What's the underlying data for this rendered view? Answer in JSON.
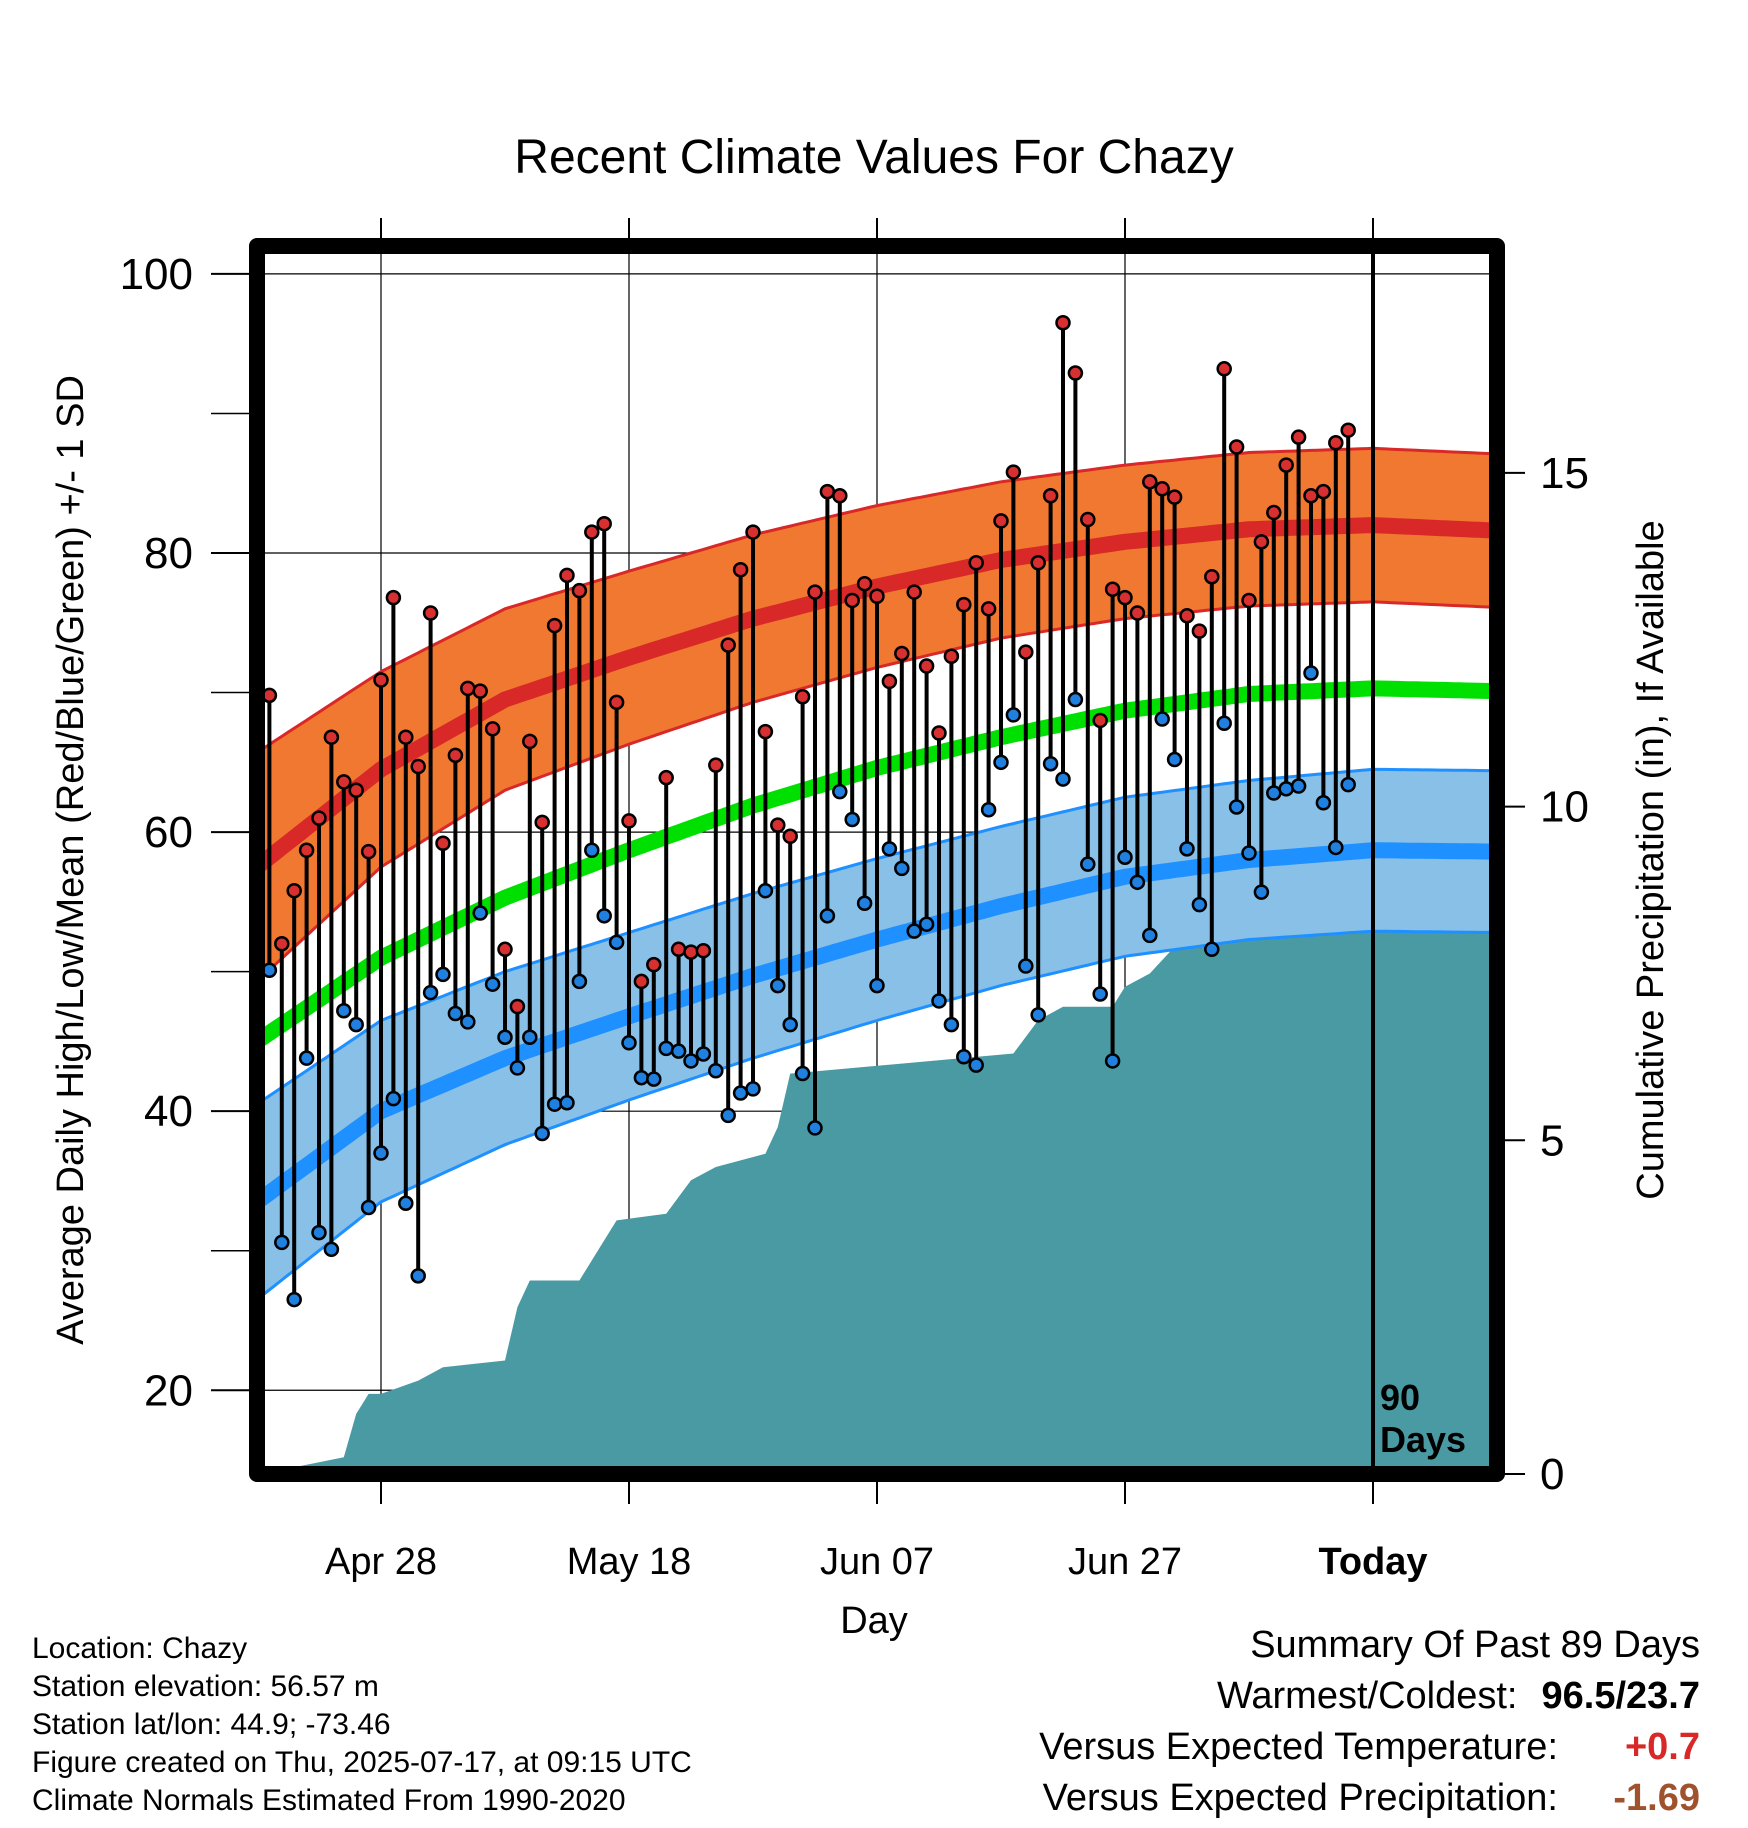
{
  "chart_data": {
    "type": "line",
    "title": "Recent Climate Values For Chazy",
    "xlabel": "Day",
    "ylabel_left": "Average Daily High/Low/Mean (Red/Blue/Green) +/- 1 SD",
    "ylabel_right": "Cumulative Precipitation (in), If Available",
    "ylim_left": [
      14,
      102
    ],
    "ylim_right": [
      0,
      18.4
    ],
    "y_ticks_left": [
      "20",
      "40",
      "60",
      "80",
      "100"
    ],
    "y_ticks_right": [
      "0",
      "5",
      "10",
      "15"
    ],
    "x_ticks": [
      {
        "label": "Apr 28",
        "day": 10
      },
      {
        "label": "May 18",
        "day": 30
      },
      {
        "label": "Jun 07",
        "day": 50
      },
      {
        "label": "Jun 27",
        "day": 70
      },
      {
        "label": "Today",
        "day": 90
      }
    ],
    "today_marker": {
      "day": 90,
      "label_line1": "90",
      "label_line2": "Days"
    },
    "colors": {
      "high_band": "#f07830",
      "high_line": "#d82828",
      "high_edge": "#d82828",
      "low_band": "#88c0e8",
      "low_line": "#1e90ff",
      "low_edge": "#1e90ff",
      "mean_line": "#00e000",
      "precip": "#4a9aa4",
      "high_dot": "#d83030",
      "low_dot": "#2080e0"
    },
    "normals": {
      "days": [
        0,
        10,
        20,
        30,
        40,
        50,
        60,
        70,
        80,
        90,
        100
      ],
      "high_mean": [
        57.5,
        64.5,
        69.5,
        72.5,
        75.3,
        77.6,
        79.5,
        80.8,
        81.7,
        82.0,
        81.6
      ],
      "high_sd": [
        8.2,
        7.0,
        6.5,
        6.2,
        6.0,
        5.8,
        5.6,
        5.5,
        5.5,
        5.5,
        5.5
      ],
      "low_mean": [
        33.5,
        40.0,
        43.8,
        46.8,
        49.7,
        52.3,
        54.7,
        56.8,
        58.0,
        58.7,
        58.6
      ],
      "low_sd": [
        7.0,
        6.5,
        6.2,
        6.0,
        5.9,
        5.8,
        5.7,
        5.7,
        5.7,
        5.8,
        5.8
      ],
      "mean": [
        45.0,
        51.0,
        55.3,
        58.7,
        61.9,
        64.6,
        66.8,
        68.7,
        69.9,
        70.3,
        70.1
      ]
    },
    "daily": {
      "start_day": 0,
      "highs": [
        60.7,
        69.8,
        52.0,
        55.8,
        58.7,
        61.0,
        66.8,
        63.6,
        63.0,
        58.6,
        70.9,
        76.8,
        66.8,
        64.7,
        75.7,
        59.2,
        65.5,
        70.3,
        70.1,
        67.4,
        51.6,
        47.5,
        66.5,
        60.7,
        74.8,
        78.4,
        77.3,
        81.5,
        82.1,
        69.3,
        60.8,
        49.3,
        50.5,
        63.9,
        51.6,
        51.4,
        51.5,
        64.8,
        73.4,
        78.8,
        81.5,
        67.2,
        60.5,
        59.7,
        69.7,
        77.2,
        84.4,
        84.1,
        76.6,
        77.8,
        76.9,
        70.8,
        72.8,
        77.2,
        71.9,
        67.1,
        72.6,
        76.3,
        79.3,
        76.0,
        82.3,
        85.8,
        72.9,
        79.3,
        84.1,
        96.5,
        92.9,
        82.4,
        68.0,
        77.4,
        76.8,
        75.7,
        85.1,
        84.6,
        84.0,
        75.5,
        74.4,
        78.3,
        93.2,
        87.6,
        76.6,
        80.8,
        82.9,
        86.3,
        88.3,
        84.1,
        84.4,
        87.9,
        88.8
      ],
      "lows": [
        23.7,
        50.1,
        30.6,
        26.5,
        43.8,
        31.3,
        30.1,
        47.2,
        46.2,
        33.1,
        37.0,
        40.9,
        33.4,
        28.2,
        48.5,
        49.8,
        47.0,
        46.4,
        54.2,
        49.1,
        45.3,
        43.1,
        45.3,
        38.4,
        40.5,
        40.6,
        49.3,
        58.7,
        54.0,
        52.1,
        44.9,
        42.4,
        42.3,
        44.5,
        44.3,
        43.6,
        44.1,
        42.9,
        39.7,
        41.3,
        41.6,
        55.8,
        49.0,
        46.2,
        42.7,
        38.8,
        54.0,
        62.9,
        60.9,
        54.9,
        49.0,
        58.8,
        57.4,
        52.9,
        53.4,
        47.9,
        46.2,
        43.9,
        43.3,
        61.6,
        65.0,
        68.4,
        50.4,
        46.9,
        64.9,
        63.8,
        69.5,
        57.7,
        48.4,
        43.6,
        58.2,
        56.4,
        52.6,
        68.1,
        65.2,
        58.8,
        54.8,
        51.6,
        67.8,
        61.8,
        58.5,
        55.7,
        62.8,
        63.1,
        63.3,
        71.4,
        62.1,
        58.9,
        63.4
      ]
    },
    "precip_cumulative": {
      "days": [
        0,
        3,
        7,
        8,
        9,
        10,
        13,
        15,
        20,
        21,
        22,
        26,
        28,
        29,
        33,
        35,
        37,
        41,
        42,
        43,
        61,
        63,
        65,
        69,
        70,
        72,
        74,
        78,
        80,
        83,
        85,
        86,
        87,
        100
      ],
      "values": [
        0,
        0.1,
        0.25,
        0.9,
        1.2,
        1.2,
        1.4,
        1.6,
        1.7,
        2.5,
        2.9,
        2.9,
        3.5,
        3.8,
        3.9,
        4.4,
        4.6,
        4.8,
        5.2,
        6.0,
        6.3,
        6.8,
        7.0,
        7.0,
        7.3,
        7.5,
        7.9,
        8.0,
        8.5,
        8.7,
        8.9,
        9.1,
        9.3,
        9.3
      ]
    }
  },
  "info": {
    "location": "Location: Chazy",
    "elevation": "Station elevation: 56.57 m",
    "latlon": "Station lat/lon: 44.9; -73.46",
    "created": "Figure created on Thu, 2025-07-17, at 09:15 UTC",
    "normals_period": "Climate Normals Estimated From 1990-2020"
  },
  "summary": {
    "heading": "Summary Of Past 89 Days",
    "warm_cold_label": "Warmest/Coldest:",
    "warm_value": "96.5",
    "slash": "/",
    "cold_value": "23.7",
    "temp_label": "Versus Expected Temperature:",
    "temp_value": "+0.7",
    "temp_color": "#d82828",
    "precip_label": "Versus Expected Precipitation:",
    "precip_value": "-1.69",
    "precip_color": "#a0522d"
  }
}
